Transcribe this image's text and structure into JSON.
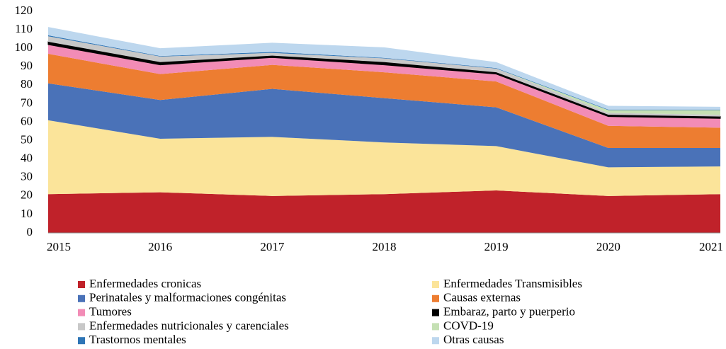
{
  "chart_data": {
    "type": "stacked_area",
    "categories": [
      "2015",
      "2016",
      "2017",
      "2018",
      "2019",
      "2020",
      "2021"
    ],
    "ylim": [
      0,
      120
    ],
    "yticks": [
      0,
      10,
      20,
      30,
      40,
      50,
      60,
      70,
      80,
      90,
      100,
      110,
      120
    ],
    "grid": false,
    "series": [
      {
        "name": "Enfermedades cronicas",
        "color": "#c0222a",
        "values": [
          21,
          22,
          20,
          21,
          23,
          20,
          21
        ]
      },
      {
        "name": "Enfermedades Transmisibles",
        "color": "#fbe49a",
        "values": [
          40,
          29,
          32,
          28,
          24,
          15.5,
          15
        ]
      },
      {
        "name": "Perinatales y malformaciones congénitas",
        "color": "#4a72b8",
        "values": [
          20,
          21,
          26,
          24,
          21,
          10.5,
          10
        ]
      },
      {
        "name": "Causas externas",
        "color": "#ed7d31",
        "values": [
          16,
          14,
          13,
          14,
          14,
          12,
          11
        ]
      },
      {
        "name": "Tumores",
        "color": "#f28cb6",
        "values": [
          5,
          5,
          4,
          4,
          4,
          5,
          5
        ]
      },
      {
        "name": "Embaraz, parto y puerperio",
        "color": "#000000",
        "values": [
          1.5,
          1.5,
          1,
          1.5,
          1,
          1,
          1
        ]
      },
      {
        "name": "Enfermedades nutricionales y carenciales",
        "color": "#c8c8c8",
        "values": [
          3,
          3,
          1.5,
          2,
          2,
          1,
          1
        ]
      },
      {
        "name": "COVD-19",
        "color": "#c5e0b4",
        "values": [
          0,
          0,
          0,
          0,
          0,
          1.5,
          2.5
        ]
      },
      {
        "name": "Trastornos mentales",
        "color": "#2e75b6",
        "values": [
          0.5,
          0.3,
          0.5,
          0.3,
          0.3,
          0.3,
          0.3
        ]
      },
      {
        "name": "Otras causas",
        "color": "#bdd7ee",
        "values": [
          4.5,
          4.2,
          5,
          5.7,
          3.2,
          2,
          1.5
        ]
      }
    ]
  }
}
